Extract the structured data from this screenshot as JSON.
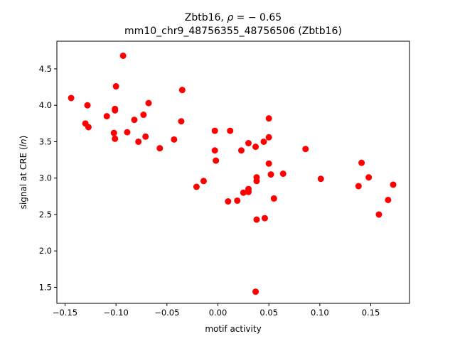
{
  "chart_data": {
    "type": "scatter",
    "title_line1_prefix": "Zbtb16, ",
    "title_line1_rho": "ρ",
    "title_line1_suffix": " = − 0.65",
    "title_line2": "mm10_chr9_48756355_48756506 (Zbtb16)",
    "xlabel": "motif activity",
    "ylabel_prefix": "signal at CRE (",
    "ylabel_italic": "ln",
    "ylabel_suffix": ")",
    "xlim": [
      -0.158,
      0.188
    ],
    "ylim": [
      1.28,
      4.88
    ],
    "xticks": [
      -0.15,
      -0.1,
      -0.05,
      0.0,
      0.05,
      0.1,
      0.15
    ],
    "xtick_labels": [
      "−0.15",
      "−0.10",
      "−0.05",
      "0.00",
      "0.05",
      "0.10",
      "0.15"
    ],
    "yticks": [
      1.5,
      2.0,
      2.5,
      3.0,
      3.5,
      4.0,
      4.5
    ],
    "ytick_labels": [
      "1.5",
      "2.0",
      "2.5",
      "3.0",
      "3.5",
      "4.0",
      "4.5"
    ],
    "grid": false,
    "marker_color": "#ff0000",
    "points": [
      {
        "x": -0.144,
        "y": 4.1
      },
      {
        "x": -0.13,
        "y": 3.75
      },
      {
        "x": -0.128,
        "y": 4.0
      },
      {
        "x": -0.127,
        "y": 3.7
      },
      {
        "x": -0.109,
        "y": 3.85
      },
      {
        "x": -0.102,
        "y": 3.62
      },
      {
        "x": -0.101,
        "y": 3.93
      },
      {
        "x": -0.101,
        "y": 3.95
      },
      {
        "x": -0.101,
        "y": 3.54
      },
      {
        "x": -0.1,
        "y": 4.26
      },
      {
        "x": -0.093,
        "y": 4.68
      },
      {
        "x": -0.089,
        "y": 3.63
      },
      {
        "x": -0.082,
        "y": 3.8
      },
      {
        "x": -0.078,
        "y": 3.5
      },
      {
        "x": -0.073,
        "y": 3.87
      },
      {
        "x": -0.071,
        "y": 3.57
      },
      {
        "x": -0.068,
        "y": 4.03
      },
      {
        "x": -0.057,
        "y": 3.41
      },
      {
        "x": -0.043,
        "y": 3.53
      },
      {
        "x": -0.036,
        "y": 3.78
      },
      {
        "x": -0.035,
        "y": 4.21
      },
      {
        "x": -0.021,
        "y": 2.88
      },
      {
        "x": -0.014,
        "y": 2.96
      },
      {
        "x": -0.003,
        "y": 3.65
      },
      {
        "x": -0.003,
        "y": 3.38
      },
      {
        "x": -0.002,
        "y": 3.24
      },
      {
        "x": 0.01,
        "y": 2.68
      },
      {
        "x": 0.012,
        "y": 3.65
      },
      {
        "x": 0.019,
        "y": 2.69
      },
      {
        "x": 0.023,
        "y": 3.38
      },
      {
        "x": 0.025,
        "y": 2.8
      },
      {
        "x": 0.03,
        "y": 3.48
      },
      {
        "x": 0.03,
        "y": 2.85
      },
      {
        "x": 0.03,
        "y": 2.81
      },
      {
        "x": 0.037,
        "y": 3.43
      },
      {
        "x": 0.038,
        "y": 3.01
      },
      {
        "x": 0.038,
        "y": 2.96
      },
      {
        "x": 0.038,
        "y": 2.43
      },
      {
        "x": 0.037,
        "y": 1.44
      },
      {
        "x": 0.045,
        "y": 3.5
      },
      {
        "x": 0.046,
        "y": 2.45
      },
      {
        "x": 0.05,
        "y": 3.82
      },
      {
        "x": 0.05,
        "y": 3.56
      },
      {
        "x": 0.05,
        "y": 3.2
      },
      {
        "x": 0.052,
        "y": 3.05
      },
      {
        "x": 0.055,
        "y": 2.72
      },
      {
        "x": 0.064,
        "y": 3.06
      },
      {
        "x": 0.086,
        "y": 3.4
      },
      {
        "x": 0.101,
        "y": 2.99
      },
      {
        "x": 0.138,
        "y": 2.89
      },
      {
        "x": 0.141,
        "y": 3.21
      },
      {
        "x": 0.148,
        "y": 3.01
      },
      {
        "x": 0.158,
        "y": 2.5
      },
      {
        "x": 0.167,
        "y": 2.7
      },
      {
        "x": 0.172,
        "y": 2.91
      }
    ]
  }
}
